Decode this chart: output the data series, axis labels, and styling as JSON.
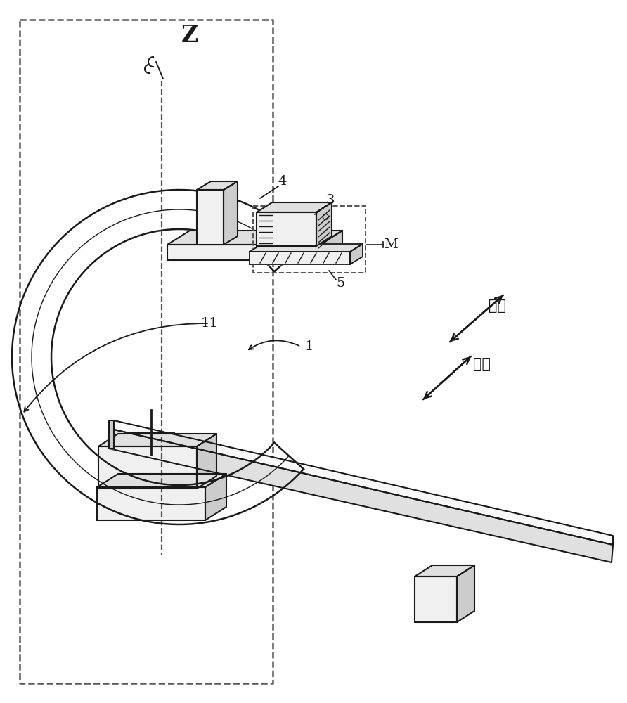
{
  "bg_color": "#ffffff",
  "line_color": "#1a1a1a",
  "dashed_color": "#555555",
  "gray_light": "#f0f0f0",
  "gray_mid": "#e0e0e0",
  "gray_dark": "#cccccc",
  "label_Z": "Z",
  "label_4": "4",
  "label_3": "3",
  "label_M": "M",
  "label_5": "5",
  "label_11": "11",
  "label_1": "1",
  "label_heng": "横向",
  "label_zong": "纵向",
  "fig_width": 8.92,
  "fig_height": 10.0,
  "dpi": 100
}
